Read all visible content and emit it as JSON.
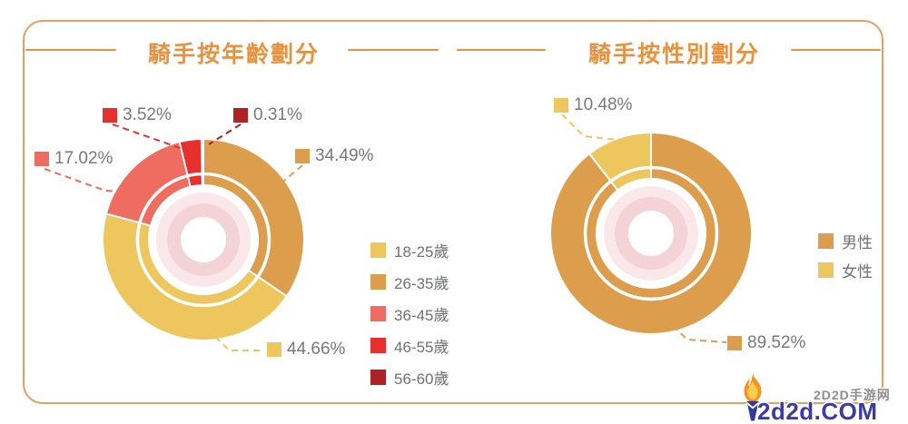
{
  "chart_data": [
    {
      "type": "pie",
      "subtype": "double-ring-donut",
      "title": "騎手按年齡劃分",
      "unit": "%",
      "direction": "clockwise",
      "start_angle_deg": 0,
      "segments": [
        {
          "label": "26-35歲",
          "value": 34.49,
          "display": "34.49%",
          "color": "#dc9e4c"
        },
        {
          "label": "18-25歲",
          "value": 44.66,
          "display": "44.66%",
          "color": "#edc65e"
        },
        {
          "label": "36-45歲",
          "value": 17.02,
          "display": "17.02%",
          "color": "#ee6d60"
        },
        {
          "label": "46-55歲",
          "value": 3.52,
          "display": "3.52%",
          "color": "#e5302d"
        },
        {
          "label": "56-60歲",
          "value": 0.31,
          "display": "0.31%",
          "color": "#ae2124"
        }
      ],
      "legend_order": [
        "18-25歲",
        "26-35歲",
        "36-45歲",
        "46-55歲",
        "56-60歲"
      ],
      "legend_position": "right"
    },
    {
      "type": "pie",
      "subtype": "double-ring-donut",
      "title": "騎手按性別劃分",
      "unit": "%",
      "direction": "clockwise",
      "start_angle_deg": 0,
      "segments": [
        {
          "label": "男性",
          "value": 89.52,
          "display": "89.52%",
          "color": "#dc9e4c"
        },
        {
          "label": "女性",
          "value": 10.48,
          "display": "10.48%",
          "color": "#edc65e"
        }
      ],
      "legend_order": [
        "男性",
        "女性"
      ],
      "legend_position": "right"
    }
  ],
  "decor": {
    "title_color": "#e8923f",
    "frame_border_color": "#dfa263",
    "label_text_color": "#77787b",
    "center_ring_outer_color": "#fae7e9",
    "center_ring_inner_color": "#f4d3d7"
  },
  "watermark": {
    "site_name": "2D2D手游网",
    "domain": "2d2d.COM"
  }
}
